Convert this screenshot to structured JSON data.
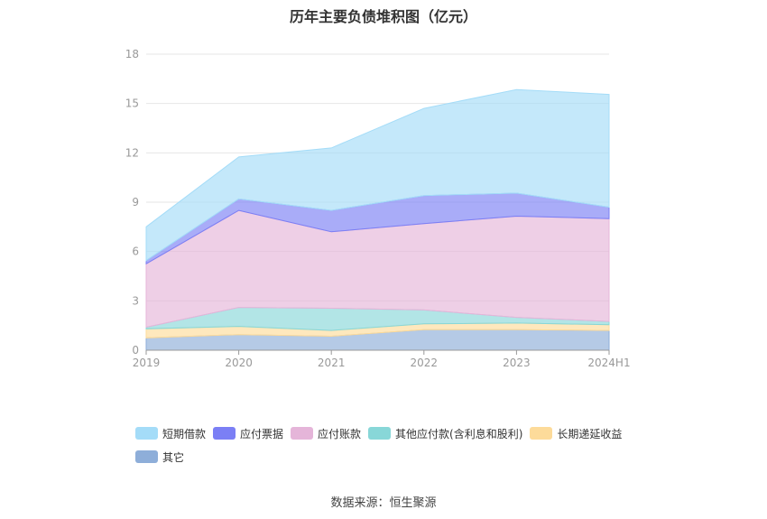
{
  "title": "历年主要负债堆积图（亿元）",
  "source": "数据来源：恒生聚源",
  "chart_data": {
    "type": "area",
    "stacked": true,
    "title": "历年主要负债堆积图（亿元）",
    "categories": [
      "2019",
      "2020",
      "2021",
      "2022",
      "2023",
      "2024H1"
    ],
    "ylim": [
      0,
      18
    ],
    "yticks": [
      0,
      3,
      6,
      9,
      12,
      15,
      18
    ],
    "grid": true,
    "legend_position": "bottom",
    "series": [
      {
        "name": "其它",
        "color": "#8eaed9",
        "values": [
          0.75,
          0.95,
          0.85,
          1.25,
          1.25,
          1.2
        ]
      },
      {
        "name": "长期递延收益",
        "color": "#fddb9a",
        "values": [
          0.55,
          0.5,
          0.35,
          0.35,
          0.4,
          0.35
        ]
      },
      {
        "name": "其他应付款(含利息和股利)",
        "color": "#88d7d8",
        "values": [
          0.1,
          1.15,
          1.35,
          0.85,
          0.35,
          0.2
        ]
      },
      {
        "name": "应付账款",
        "color": "#e5b5d9",
        "values": [
          3.85,
          5.9,
          4.65,
          5.25,
          6.15,
          6.25
        ]
      },
      {
        "name": "应付票据",
        "color": "#7b7ff5",
        "values": [
          0.2,
          0.7,
          1.3,
          1.7,
          1.4,
          0.7
        ]
      },
      {
        "name": "短期借款",
        "color": "#a4dcf8",
        "values": [
          2.05,
          2.55,
          3.8,
          5.3,
          6.3,
          6.85
        ]
      }
    ]
  }
}
